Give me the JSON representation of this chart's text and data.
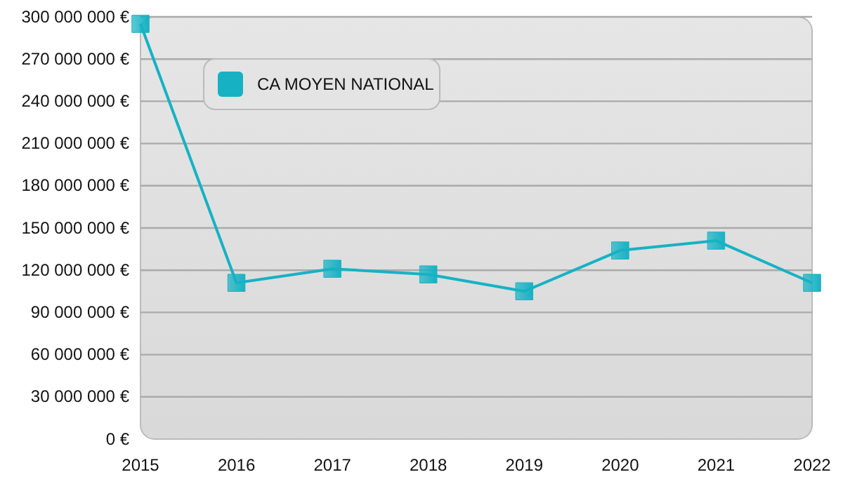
{
  "chart_data": {
    "type": "line",
    "x": [
      2015,
      2016,
      2017,
      2018,
      2019,
      2020,
      2021,
      2022
    ],
    "series": [
      {
        "name": "CA MOYEN NATIONAL",
        "color": "#16b2c4",
        "values": [
          295000000,
          111000000,
          121000000,
          117000000,
          105000000,
          134000000,
          141000000,
          111000000
        ]
      }
    ],
    "xlim": [
      2015,
      2022
    ],
    "xticks": [
      2015,
      2016,
      2017,
      2018,
      2019,
      2020,
      2021,
      2022
    ],
    "ylim": [
      0,
      300000000
    ],
    "yticks": [
      {
        "value": 0,
        "label": "0 €"
      },
      {
        "value": 30000000,
        "label": "30 000 000 €"
      },
      {
        "value": 60000000,
        "label": "60 000 000 €"
      },
      {
        "value": 90000000,
        "label": "90 000 000 €"
      },
      {
        "value": 120000000,
        "label": "120 000 000 €"
      },
      {
        "value": 150000000,
        "label": "150 000 000 €"
      },
      {
        "value": 180000000,
        "label": "180 000 000 €"
      },
      {
        "value": 210000000,
        "label": "210 000 000 €"
      },
      {
        "value": 240000000,
        "label": "240 000 000 €"
      },
      {
        "value": 270000000,
        "label": "270 000 000 €"
      },
      {
        "value": 300000000,
        "label": "300 000 000 €"
      }
    ],
    "grid": "y",
    "legend": "top left",
    "marker": "square",
    "line_style": "solid"
  }
}
